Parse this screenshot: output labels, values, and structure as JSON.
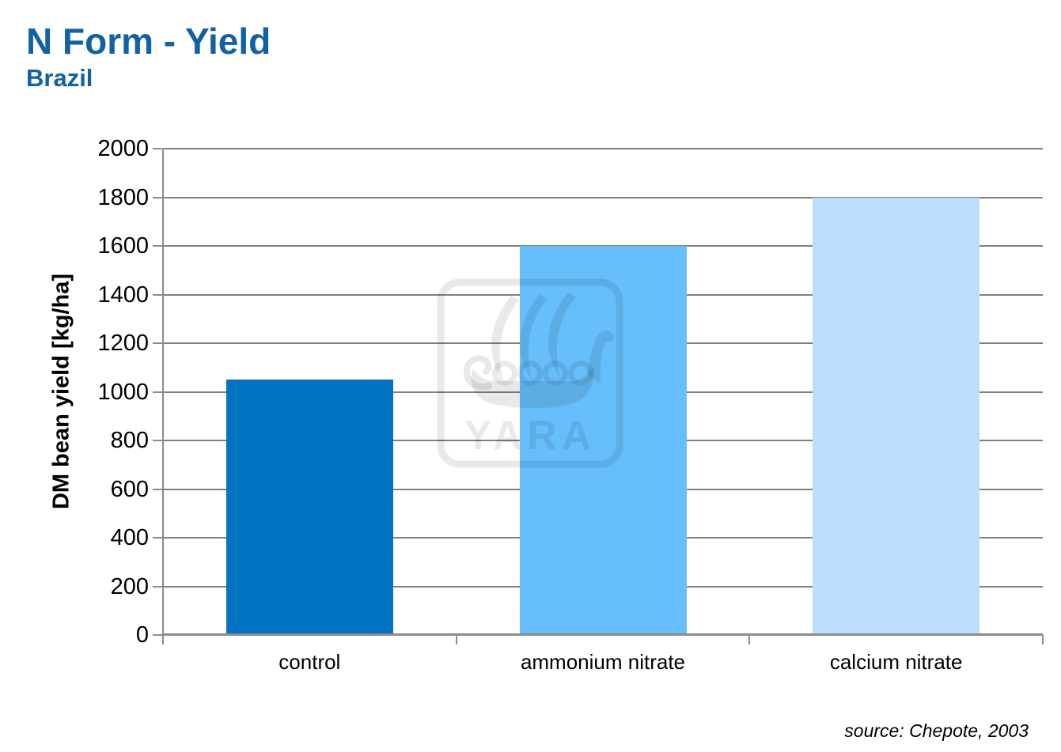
{
  "header": {
    "title": "N Form - Yield",
    "subtitle": "Brazil"
  },
  "source_note": "source: Chepote, 2003",
  "watermark_text": "YARA",
  "colors": {
    "title_blue": "#1261A5",
    "grid_gray": "#7F7F7F",
    "axis_gray": "#8C8C8C",
    "text_black": "#000000"
  },
  "chart_data": {
    "type": "bar",
    "title": "N Form - Yield",
    "subtitle": "Brazil",
    "categories": [
      "control",
      "ammonium nitrate",
      "calcium nitrate"
    ],
    "values": [
      1050,
      1600,
      1800
    ],
    "bar_colors": [
      "#0272C2",
      "#66BEFB",
      "#BADEFB"
    ],
    "xlabel": "",
    "ylabel": "DM bean yield [kg/ha]",
    "ylim": [
      0,
      2000
    ],
    "yticks": [
      0,
      200,
      400,
      600,
      800,
      1000,
      1200,
      1400,
      1600,
      1800,
      2000
    ],
    "grid": true,
    "legend": false,
    "source": "source: Chepote, 2003"
  }
}
